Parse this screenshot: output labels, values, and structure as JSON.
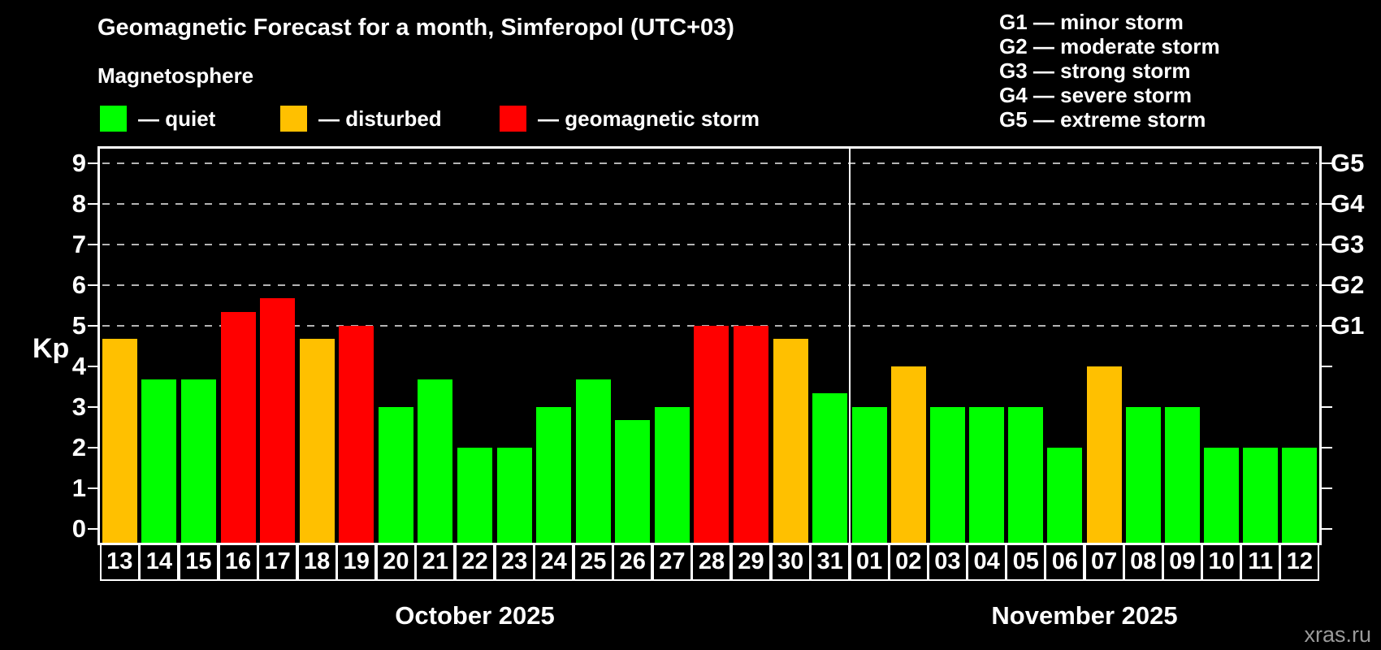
{
  "title": "Geomagnetic Forecast for a month, Simferopol (UTC+03)",
  "subtitle": "Magnetosphere",
  "legend": {
    "items": [
      {
        "key": "quiet",
        "label": "— quiet",
        "color": "#00ff00"
      },
      {
        "key": "disturbed",
        "label": "— disturbed",
        "color": "#ffc000"
      },
      {
        "key": "storm",
        "label": "— geomagnetic storm",
        "color": "#ff0000"
      }
    ]
  },
  "storm_scale_legend": [
    "G1 — minor storm",
    "G2 — moderate storm",
    "G3 — strong storm",
    "G4 — severe storm",
    "G5 — extreme storm"
  ],
  "watermark": "xras.ru",
  "chart_data": {
    "type": "bar",
    "ylabel": "Kp",
    "ylim": [
      -0.34,
      9.36
    ],
    "yticks": [
      0,
      1,
      2,
      3,
      4,
      5,
      6,
      7,
      8,
      9
    ],
    "gridlines_kp": [
      5,
      6,
      7,
      8,
      9
    ],
    "grid_style": "dashed",
    "right_axis_labels": [
      {
        "kp": 5,
        "label": "G1"
      },
      {
        "kp": 6,
        "label": "G2"
      },
      {
        "kp": 7,
        "label": "G3"
      },
      {
        "kp": 8,
        "label": "G4"
      },
      {
        "kp": 9,
        "label": "G5"
      }
    ],
    "status_colors": {
      "quiet": "#00ff00",
      "disturbed": "#ffc000",
      "storm": "#ff0000"
    },
    "sections": [
      {
        "label": "October 2025",
        "days": [
          "13",
          "14",
          "15",
          "16",
          "17",
          "18",
          "19",
          "20",
          "21",
          "22",
          "23",
          "24",
          "25",
          "26",
          "27",
          "28",
          "29",
          "30",
          "31"
        ],
        "values": [
          4.67,
          3.67,
          3.67,
          5.33,
          5.67,
          4.67,
          5.0,
          3.0,
          3.67,
          2.0,
          2.0,
          3.0,
          3.67,
          2.67,
          3.0,
          5.0,
          5.0,
          4.67,
          3.33
        ],
        "status": [
          "disturbed",
          "quiet",
          "quiet",
          "storm",
          "storm",
          "disturbed",
          "storm",
          "quiet",
          "quiet",
          "quiet",
          "quiet",
          "quiet",
          "quiet",
          "quiet",
          "quiet",
          "storm",
          "storm",
          "disturbed",
          "quiet"
        ]
      },
      {
        "label": "November 2025",
        "days": [
          "01",
          "02",
          "03",
          "04",
          "05",
          "06",
          "07",
          "08",
          "09",
          "10",
          "11",
          "12"
        ],
        "values": [
          3.0,
          4.0,
          3.0,
          3.0,
          3.0,
          2.0,
          4.0,
          3.0,
          3.0,
          2.0,
          2.0,
          2.0
        ],
        "status": [
          "quiet",
          "disturbed",
          "quiet",
          "quiet",
          "quiet",
          "quiet",
          "disturbed",
          "quiet",
          "quiet",
          "quiet",
          "quiet",
          "quiet"
        ]
      }
    ]
  }
}
